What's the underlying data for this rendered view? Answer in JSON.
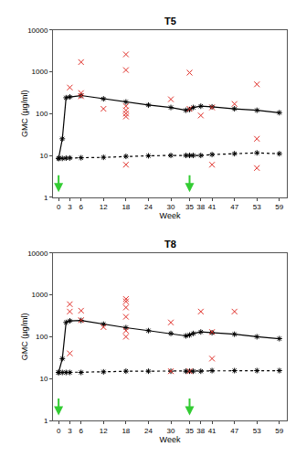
{
  "chart_data": [
    {
      "type": "line",
      "title": "T5",
      "x_label": "Week",
      "y_label": "GMC (µg/ml)",
      "log": "y",
      "grid": false,
      "xlim": [
        -1.5,
        61
      ],
      "xticks": [
        0,
        3,
        6,
        12,
        18,
        24,
        30,
        35,
        38,
        41,
        47,
        53,
        59
      ],
      "ylim": [
        1,
        10000
      ],
      "yticks": [
        1,
        10,
        100,
        1000,
        10000
      ],
      "arrows": {
        "x": [
          0,
          35
        ],
        "color": "#33cc33"
      },
      "series": [
        {
          "type": "line",
          "line_style": "solid",
          "marker": "x",
          "color": "#000000",
          "x": [
            0,
            1,
            2,
            3,
            6,
            12,
            18,
            24,
            30,
            34,
            35,
            36,
            38,
            41,
            47,
            53,
            59
          ],
          "values": [
            8.5,
            25,
            240,
            250,
            270,
            225,
            190,
            160,
            140,
            120,
            125,
            140,
            150,
            145,
            130,
            120,
            105
          ]
        },
        {
          "type": "line",
          "line_style": "dot",
          "marker": "x",
          "color": "#000000",
          "x": [
            0,
            1,
            2,
            3,
            6,
            12,
            18,
            24,
            30,
            34,
            35,
            36,
            38,
            41,
            47,
            53,
            59
          ],
          "values": [
            8.5,
            8.5,
            8.6,
            8.7,
            8.8,
            9,
            9.5,
            9.8,
            10,
            10,
            10,
            10,
            10,
            10.5,
            11,
            11.5,
            11
          ]
        },
        {
          "type": "scatter",
          "marker": "x",
          "color": "#e0302a",
          "x": [
            3,
            6,
            6,
            6,
            12,
            18,
            18,
            18,
            18,
            18,
            18,
            18,
            30,
            35,
            35,
            38,
            41,
            41,
            47,
            53,
            53,
            53
          ],
          "values": [
            420,
            1700,
            310,
            260,
            130,
            2600,
            1100,
            150,
            120,
            100,
            85,
            6,
            220,
            950,
            130,
            90,
            140,
            6,
            170,
            500,
            25,
            5
          ]
        }
      ]
    },
    {
      "type": "line",
      "title": "T8",
      "x_label": "Week",
      "y_label": "GMC (µg/ml)",
      "log": "y",
      "grid": false,
      "xlim": [
        -1.5,
        61
      ],
      "xticks": [
        0,
        3,
        6,
        12,
        18,
        24,
        30,
        35,
        38,
        41,
        47,
        53,
        59
      ],
      "ylim": [
        1,
        10000
      ],
      "yticks": [
        1,
        10,
        100,
        1000,
        10000
      ],
      "arrows": {
        "x": [
          0,
          35
        ],
        "color": "#33cc33"
      },
      "series": [
        {
          "type": "line",
          "line_style": "solid",
          "marker": "x",
          "color": "#000000",
          "x": [
            0,
            1,
            2,
            3,
            6,
            12,
            18,
            24,
            30,
            34,
            35,
            36,
            38,
            41,
            47,
            53,
            59
          ],
          "values": [
            14,
            30,
            220,
            240,
            245,
            200,
            165,
            140,
            120,
            105,
            110,
            120,
            130,
            125,
            115,
            100,
            90
          ]
        },
        {
          "type": "line",
          "line_style": "dot",
          "marker": "x",
          "color": "#000000",
          "x": [
            0,
            1,
            2,
            3,
            6,
            12,
            18,
            24,
            30,
            34,
            35,
            36,
            38,
            41,
            47,
            53,
            59
          ],
          "values": [
            14,
            14,
            14,
            14,
            14,
            14.5,
            15,
            15,
            15,
            15,
            15,
            15,
            15,
            15.5,
            15.5,
            15.5,
            15.5
          ]
        },
        {
          "type": "scatter",
          "marker": "x",
          "color": "#e0302a",
          "x": [
            3,
            3,
            3,
            6,
            6,
            12,
            18,
            18,
            18,
            18,
            18,
            18,
            30,
            30,
            35,
            38,
            41,
            41,
            47
          ],
          "values": [
            600,
            400,
            40,
            420,
            250,
            170,
            800,
            700,
            500,
            300,
            140,
            100,
            220,
            15,
            15,
            400,
            130,
            30,
            400
          ]
        }
      ]
    }
  ]
}
